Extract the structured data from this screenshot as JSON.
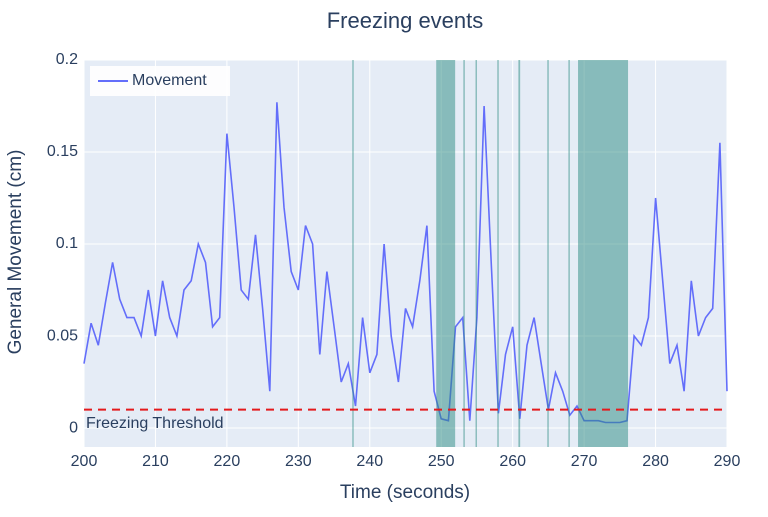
{
  "chart_data": {
    "type": "line",
    "title": "Freezing events",
    "x_label": "Time (seconds)",
    "y_label": "General Movement (cm)",
    "x": [
      200,
      201,
      202,
      203,
      204,
      205,
      206,
      207,
      208,
      209,
      210,
      211,
      212,
      213,
      214,
      215,
      216,
      217,
      218,
      219,
      220,
      221,
      222,
      223,
      224,
      225,
      226,
      227,
      228,
      229,
      230,
      231,
      232,
      233,
      234,
      235,
      236,
      237,
      238,
      239,
      240,
      241,
      242,
      243,
      244,
      245,
      246,
      247,
      248,
      249,
      250,
      251,
      252,
      253,
      254,
      255,
      256,
      257,
      258,
      259,
      260,
      261,
      262,
      263,
      264,
      265,
      266,
      267,
      268,
      269,
      270,
      271,
      272,
      273,
      274,
      275,
      276,
      277,
      278,
      279,
      280,
      281,
      282,
      283,
      284,
      285,
      286,
      287,
      288,
      289,
      290
    ],
    "series": [
      {
        "name": "Movement",
        "color": "#636efa",
        "values": [
          0.035,
          0.057,
          0.045,
          0.068,
          0.09,
          0.07,
          0.06,
          0.06,
          0.05,
          0.075,
          0.05,
          0.08,
          0.06,
          0.05,
          0.075,
          0.08,
          0.1,
          0.09,
          0.055,
          0.06,
          0.16,
          0.12,
          0.075,
          0.07,
          0.105,
          0.065,
          0.02,
          0.177,
          0.12,
          0.085,
          0.075,
          0.11,
          0.1,
          0.04,
          0.085,
          0.055,
          0.025,
          0.035,
          0.012,
          0.06,
          0.03,
          0.04,
          0.1,
          0.05,
          0.025,
          0.065,
          0.055,
          0.08,
          0.11,
          0.02,
          0.005,
          0.004,
          0.055,
          0.06,
          0.004,
          0.06,
          0.175,
          0.09,
          0.008,
          0.04,
          0.055,
          0.005,
          0.045,
          0.06,
          0.035,
          0.01,
          0.03,
          0.02,
          0.007,
          0.012,
          0.004,
          0.004,
          0.004,
          0.003,
          0.003,
          0.003,
          0.004,
          0.05,
          0.045,
          0.06,
          0.125,
          0.08,
          0.035,
          0.045,
          0.02,
          0.08,
          0.05,
          0.06,
          0.065,
          0.155,
          0.02
        ]
      }
    ],
    "threshold": {
      "value": 0.01,
      "label": "Freezing Threshold",
      "color": "#e41a1c"
    },
    "freezing_events": [
      [
        237.55,
        237.75
      ],
      [
        249.3,
        251.95
      ],
      [
        253.1,
        253.3
      ],
      [
        254.8,
        255.0
      ],
      [
        257.85,
        258.05
      ],
      [
        260.8,
        261.05
      ],
      [
        264.85,
        265.05
      ],
      [
        267.8,
        268.0
      ],
      [
        269.15,
        276.15
      ]
    ],
    "event_color": "#2a8a80",
    "xlim": [
      200,
      290
    ],
    "xticks": [
      200,
      210,
      220,
      230,
      240,
      250,
      260,
      270,
      280,
      290
    ],
    "ylim": [
      -0.0103,
      0.2
    ],
    "yticks": [
      0,
      0.05,
      0.1,
      0.15,
      0.2
    ],
    "grid": true,
    "legend_position": "top-left"
  }
}
